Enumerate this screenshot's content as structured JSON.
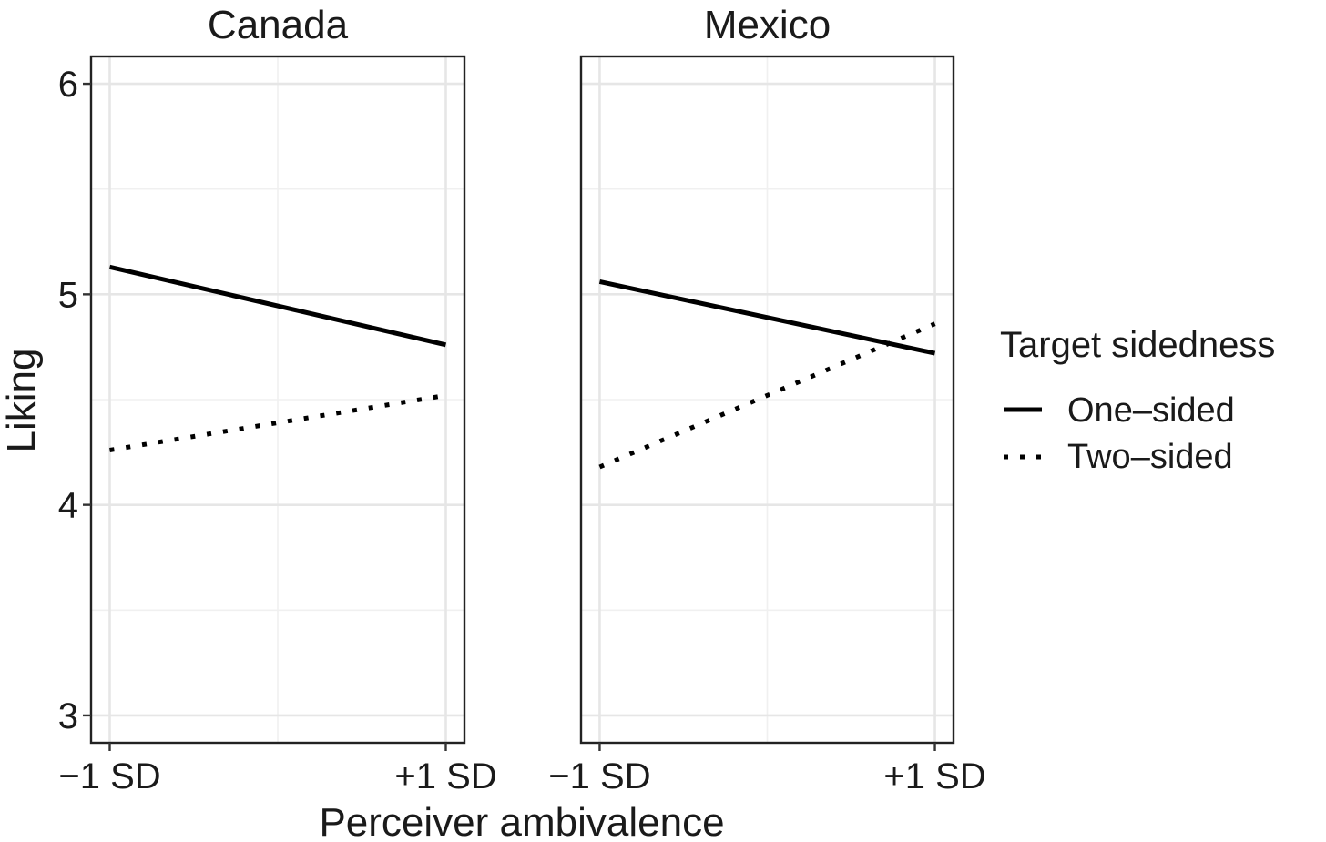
{
  "chart_data": {
    "type": "line",
    "xlabel": "Perceiver ambivalence",
    "ylabel": "Liking",
    "x_categories": [
      "−1 SD",
      "+1 SD"
    ],
    "y_ticks": [
      3,
      4,
      5,
      6
    ],
    "y_tick_labels": [
      "3",
      "4",
      "5",
      "6"
    ],
    "ylim": [
      2.87,
      6.13
    ],
    "legend": {
      "title": "Target sidedness",
      "position": "right",
      "items": [
        {
          "name": "One–sided",
          "linetype": "solid"
        },
        {
          "name": "Two–sided",
          "linetype": "dotted"
        }
      ]
    },
    "panels": [
      {
        "title": "Canada",
        "series": [
          {
            "name": "One–sided",
            "linetype": "solid",
            "values": [
              5.13,
              4.76
            ]
          },
          {
            "name": "Two–sided",
            "linetype": "dotted",
            "values": [
              4.26,
              4.52
            ]
          }
        ]
      },
      {
        "title": "Mexico",
        "series": [
          {
            "name": "One–sided",
            "linetype": "solid",
            "values": [
              5.06,
              4.72
            ]
          },
          {
            "name": "Two–sided",
            "linetype": "dotted",
            "values": [
              4.18,
              4.86
            ]
          }
        ]
      }
    ]
  }
}
